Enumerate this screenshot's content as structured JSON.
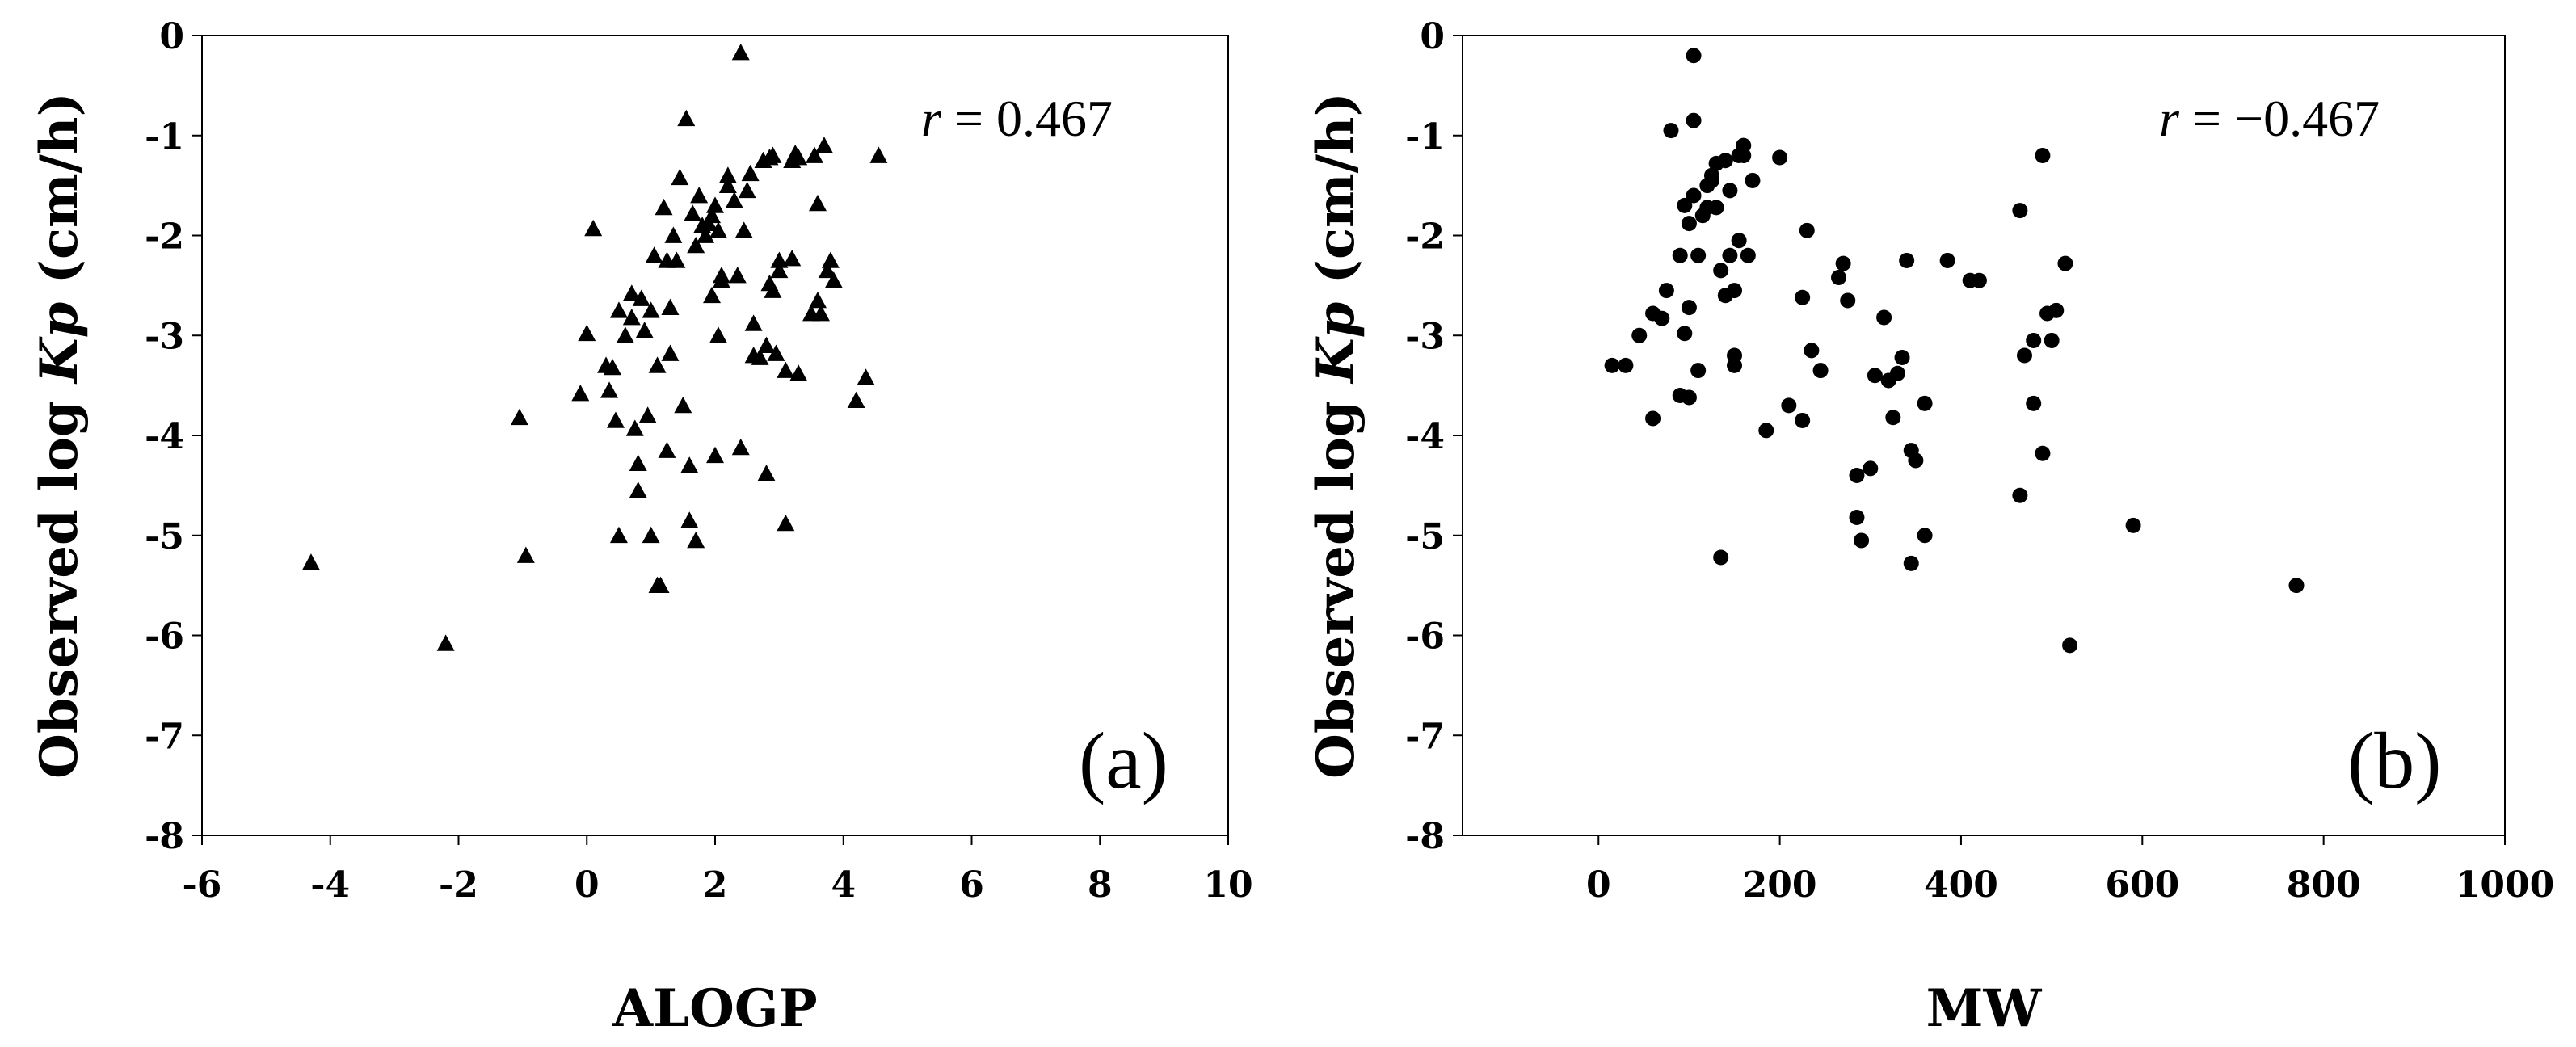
{
  "chart_data": [
    {
      "type": "scatter",
      "panel_label": "(a)",
      "marker": "triangle",
      "annotation": {
        "r_symbol": "r",
        "r_text": " = 0.467"
      },
      "xlabel": "ALOGP",
      "ylabel": {
        "pre": "Observed log ",
        "italic": "Kp",
        "post": " (cm/h)"
      },
      "xlim": [
        -6,
        10
      ],
      "ylim": [
        -8,
        0
      ],
      "xticks": [
        "-6",
        "-4",
        "-2",
        "0",
        "2",
        "4",
        "6",
        "8",
        "10"
      ],
      "yticks": [
        "0",
        "-1",
        "-2",
        "-3",
        "-4",
        "-5",
        "-6",
        "-7",
        "-8"
      ],
      "xtick_values": [
        -6,
        -4,
        -2,
        0,
        2,
        4,
        6,
        8,
        10
      ],
      "ytick_values": [
        0,
        -1,
        -2,
        -3,
        -4,
        -5,
        -6,
        -7,
        -8
      ],
      "grid": false,
      "color": "#000000",
      "x": [
        -4.3,
        -2.2,
        -1.05,
        -0.95,
        -0.1,
        0.0,
        0.1,
        0.3,
        0.4,
        0.35,
        0.45,
        0.5,
        0.5,
        0.6,
        0.7,
        0.7,
        0.75,
        0.8,
        0.8,
        0.85,
        0.9,
        0.95,
        1.0,
        1.0,
        1.05,
        1.1,
        1.1,
        1.15,
        1.2,
        1.25,
        1.25,
        1.3,
        1.3,
        1.35,
        1.4,
        1.45,
        1.5,
        1.55,
        1.6,
        1.6,
        1.65,
        1.7,
        1.7,
        1.75,
        1.8,
        1.85,
        1.9,
        1.95,
        1.95,
        2.0,
        2.0,
        2.05,
        2.05,
        2.1,
        2.1,
        2.2,
        2.2,
        2.3,
        2.35,
        2.4,
        2.4,
        2.45,
        2.5,
        2.55,
        2.6,
        2.6,
        2.7,
        2.75,
        2.8,
        2.8,
        2.85,
        2.85,
        2.9,
        2.9,
        2.95,
        3.0,
        3.0,
        3.1,
        3.1,
        3.2,
        3.2,
        3.25,
        3.3,
        3.3,
        3.5,
        3.55,
        3.6,
        3.6,
        3.65,
        3.7,
        3.75,
        3.8,
        3.85,
        4.2,
        4.35,
        4.55
      ],
      "y": [
        -5.27,
        -6.08,
        -3.82,
        -5.2,
        -3.58,
        -2.98,
        -1.93,
        -3.3,
        -3.32,
        -3.55,
        -3.85,
        -5.0,
        -2.75,
        -3.0,
        -2.58,
        -2.82,
        -3.93,
        -4.28,
        -4.55,
        -2.63,
        -2.95,
        -3.8,
        -2.75,
        -5.0,
        -2.2,
        -5.5,
        -3.3,
        -5.5,
        -1.72,
        -2.25,
        -4.15,
        -2.72,
        -3.18,
        -2.0,
        -2.25,
        -1.42,
        -3.7,
        -0.83,
        -4.3,
        -4.85,
        -1.78,
        -2.1,
        -5.05,
        -1.6,
        -1.9,
        -2.0,
        -1.88,
        -1.8,
        -2.6,
        -1.7,
        -4.2,
        -3.0,
        -1.95,
        -2.4,
        -2.45,
        -1.4,
        -1.5,
        -1.65,
        -2.4,
        -0.17,
        -4.12,
        -1.95,
        -1.55,
        -1.38,
        -3.2,
        -2.88,
        -3.22,
        -1.25,
        -4.38,
        -3.1,
        -1.22,
        -2.48,
        -1.2,
        -2.55,
        -3.18,
        -2.35,
        -2.25,
        -3.35,
        -4.88,
        -1.25,
        -2.23,
        -1.18,
        -1.22,
        -3.38,
        -2.78,
        -1.2,
        -2.65,
        -1.68,
        -2.78,
        -1.1,
        -2.35,
        -2.25,
        -2.45,
        -3.65,
        -3.42,
        -1.2
      ]
    },
    {
      "type": "scatter",
      "panel_label": "(b)",
      "marker": "circle",
      "annotation": {
        "r_symbol": "r",
        "r_text": " = −0.467"
      },
      "xlabel": "MW",
      "ylabel": {
        "pre": "Observed log ",
        "italic": "Kp",
        "post": " (cm/h)"
      },
      "xlim": [
        -150,
        1000
      ],
      "ylim": [
        -8,
        0
      ],
      "xticks": [
        "0",
        "200",
        "400",
        "600",
        "800",
        "1000"
      ],
      "yticks": [
        "0",
        "-1",
        "-2",
        "-3",
        "-4",
        "-5",
        "-6",
        "-7",
        "-8"
      ],
      "xtick_values": [
        0,
        200,
        400,
        600,
        800,
        1000
      ],
      "ytick_values": [
        0,
        -1,
        -2,
        -3,
        -4,
        -5,
        -6,
        -7,
        -8
      ],
      "grid": false,
      "color": "#000000",
      "x": [
        15,
        30,
        45,
        60,
        60,
        70,
        75,
        80,
        90,
        90,
        95,
        95,
        100,
        100,
        100,
        105,
        105,
        105,
        110,
        110,
        115,
        120,
        120,
        125,
        125,
        130,
        130,
        135,
        135,
        140,
        140,
        145,
        145,
        150,
        150,
        150,
        155,
        155,
        160,
        160,
        165,
        170,
        185,
        200,
        210,
        225,
        225,
        230,
        235,
        245,
        265,
        270,
        275,
        285,
        285,
        290,
        300,
        305,
        315,
        320,
        325,
        330,
        335,
        340,
        345,
        345,
        350,
        360,
        360,
        385,
        410,
        420,
        465,
        465,
        470,
        480,
        480,
        490,
        490,
        495,
        500,
        505,
        515,
        520,
        590,
        770
      ],
      "y": [
        -3.3,
        -3.3,
        -3.0,
        -2.78,
        -3.83,
        -2.83,
        -2.55,
        -0.95,
        -2.2,
        -3.6,
        -2.98,
        -1.7,
        -2.72,
        -3.62,
        -1.88,
        -0.2,
        -0.85,
        -1.6,
        -3.35,
        -2.2,
        -1.8,
        -1.5,
        -1.72,
        -1.45,
        -1.4,
        -1.28,
        -1.72,
        -2.35,
        -5.22,
        -1.25,
        -2.6,
        -1.55,
        -2.2,
        -2.55,
        -3.2,
        -3.3,
        -1.2,
        -2.05,
        -1.1,
        -1.2,
        -2.2,
        -1.45,
        -3.95,
        -1.22,
        -3.7,
        -3.85,
        -2.62,
        -1.95,
        -3.15,
        -3.35,
        -2.42,
        -2.28,
        -2.65,
        -4.4,
        -4.82,
        -5.05,
        -4.33,
        -3.4,
        -2.82,
        -3.45,
        -3.82,
        -3.38,
        -3.22,
        -2.25,
        -5.28,
        -4.15,
        -4.25,
        -3.68,
        -5.0,
        -2.25,
        -2.45,
        -2.45,
        -1.75,
        -4.6,
        -3.2,
        -3.68,
        -3.05,
        -1.2,
        -4.18,
        -2.78,
        -3.05,
        -2.75,
        -2.28,
        -6.1,
        -4.9,
        -5.5
      ]
    }
  ]
}
